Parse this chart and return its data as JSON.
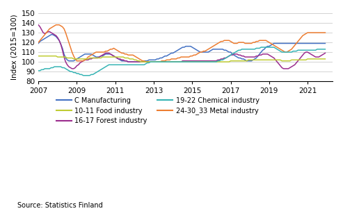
{
  "ylabel": "Index (2015=100)",
  "source": "Source: Statistics Finland",
  "ylim": [
    80,
    150
  ],
  "yticks": [
    80,
    90,
    100,
    110,
    120,
    130,
    140,
    150
  ],
  "xticks": [
    2007,
    2009,
    2011,
    2013,
    2015,
    2017,
    2019,
    2021
  ],
  "xlim": [
    2007.0,
    2022.3
  ],
  "background_color": "#ffffff",
  "grid_color": "#cccccc",
  "series": {
    "C Manufacturing": {
      "color": "#4472c4",
      "data": [
        119,
        121,
        122,
        123,
        124,
        125,
        126,
        127,
        128,
        128,
        127,
        126,
        124,
        122,
        118,
        114,
        108,
        104,
        102,
        101,
        101,
        101,
        101,
        102,
        103,
        104,
        105,
        106,
        107,
        108,
        108,
        108,
        108,
        108,
        107,
        106,
        105,
        105,
        105,
        106,
        106,
        107,
        108,
        108,
        108,
        108,
        107,
        106,
        105,
        104,
        103,
        102,
        101,
        101,
        101,
        101,
        100,
        100,
        100,
        100,
        100,
        100,
        100,
        100,
        100,
        100,
        101,
        101,
        101,
        102,
        102,
        102,
        102,
        102,
        103,
        103,
        104,
        104,
        105,
        106,
        106,
        107,
        108,
        109,
        109,
        110,
        111,
        112,
        113,
        114,
        115,
        115,
        116,
        116,
        116,
        116,
        115,
        114,
        113,
        112,
        111,
        110,
        110,
        110,
        110,
        110,
        110,
        111,
        112,
        113,
        113,
        113,
        113,
        113,
        113,
        113,
        112,
        112,
        111,
        110,
        110,
        108,
        107,
        106,
        105,
        104,
        104,
        103,
        103,
        102,
        101,
        101,
        101,
        101,
        102,
        103,
        104,
        106,
        108,
        110,
        112,
        113,
        115,
        116,
        116,
        117,
        118,
        119,
        119,
        119,
        119,
        119,
        119,
        119,
        119,
        119,
        119,
        119,
        119,
        119,
        119,
        119,
        119,
        119,
        119,
        119,
        119,
        119,
        119,
        119,
        119,
        119,
        119,
        119,
        119,
        119,
        119,
        119,
        119,
        119
      ]
    },
    "16-17 Forest industry": {
      "color": "#9b2d8e",
      "data": [
        138,
        136,
        133,
        130,
        129,
        130,
        131,
        131,
        130,
        129,
        128,
        127,
        125,
        122,
        118,
        112,
        105,
        100,
        97,
        95,
        94,
        93,
        93,
        94,
        96,
        97,
        99,
        100,
        101,
        102,
        102,
        102,
        103,
        103,
        104,
        104,
        104,
        104,
        105,
        106,
        107,
        108,
        109,
        109,
        109,
        108,
        107,
        106,
        105,
        104,
        103,
        103,
        102,
        102,
        101,
        101,
        100,
        100,
        100,
        100,
        100,
        100,
        100,
        100,
        100,
        100,
        100,
        100,
        100,
        100,
        100,
        100,
        100,
        100,
        100,
        100,
        100,
        100,
        100,
        100,
        100,
        100,
        100,
        100,
        100,
        100,
        100,
        100,
        100,
        100,
        101,
        101,
        101,
        101,
        101,
        101,
        101,
        101,
        101,
        101,
        101,
        101,
        101,
        101,
        101,
        101,
        101,
        101,
        101,
        101,
        101,
        101,
        102,
        102,
        103,
        103,
        104,
        104,
        105,
        106,
        107,
        107,
        108,
        108,
        108,
        107,
        107,
        106,
        106,
        105,
        105,
        105,
        105,
        105,
        105,
        105,
        106,
        106,
        107,
        107,
        108,
        108,
        108,
        108,
        107,
        106,
        105,
        104,
        102,
        100,
        98,
        96,
        94,
        93,
        93,
        93,
        93,
        94,
        95,
        96,
        97,
        99,
        101,
        103,
        105,
        107,
        109,
        110,
        110,
        109,
        108,
        107,
        106,
        105,
        105,
        105,
        106,
        107,
        108,
        109
      ]
    },
    "24-30_33 Metal industry": {
      "color": "#ed7d31",
      "data": [
        120,
        122,
        124,
        126,
        128,
        130,
        132,
        134,
        135,
        136,
        137,
        138,
        138,
        138,
        137,
        136,
        134,
        130,
        125,
        120,
        115,
        110,
        106,
        103,
        101,
        101,
        101,
        101,
        101,
        102,
        103,
        105,
        106,
        107,
        108,
        109,
        110,
        110,
        110,
        110,
        110,
        110,
        111,
        111,
        112,
        113,
        113,
        114,
        113,
        112,
        111,
        110,
        109,
        109,
        108,
        108,
        107,
        107,
        107,
        107,
        106,
        105,
        104,
        103,
        102,
        101,
        101,
        100,
        100,
        100,
        100,
        100,
        100,
        100,
        100,
        100,
        100,
        101,
        101,
        101,
        102,
        102,
        102,
        103,
        103,
        103,
        103,
        104,
        104,
        105,
        105,
        105,
        105,
        105,
        105,
        106,
        106,
        107,
        107,
        108,
        109,
        110,
        110,
        111,
        111,
        112,
        113,
        114,
        115,
        116,
        117,
        118,
        119,
        120,
        121,
        121,
        122,
        122,
        122,
        122,
        121,
        120,
        119,
        119,
        119,
        120,
        120,
        120,
        120,
        119,
        119,
        119,
        119,
        119,
        120,
        120,
        121,
        121,
        122,
        122,
        122,
        122,
        122,
        121,
        120,
        119,
        118,
        117,
        116,
        115,
        114,
        113,
        112,
        111,
        110,
        110,
        111,
        112,
        113,
        115,
        117,
        119,
        121,
        123,
        125,
        127,
        128,
        129,
        130,
        130,
        130,
        130,
        130,
        130,
        130,
        130,
        130,
        130,
        130,
        130
      ]
    },
    "10-11 Food industry": {
      "color": "#bfcc33",
      "data": [
        106,
        106,
        106,
        106,
        106,
        106,
        106,
        106,
        106,
        106,
        106,
        106,
        105,
        105,
        105,
        105,
        105,
        105,
        104,
        104,
        104,
        104,
        103,
        103,
        103,
        103,
        103,
        103,
        103,
        103,
        103,
        103,
        104,
        104,
        104,
        104,
        104,
        104,
        104,
        104,
        105,
        105,
        105,
        105,
        105,
        105,
        105,
        105,
        105,
        105,
        105,
        105,
        105,
        105,
        104,
        104,
        104,
        103,
        103,
        103,
        102,
        102,
        101,
        101,
        100,
        100,
        100,
        100,
        100,
        100,
        100,
        100,
        100,
        100,
        100,
        100,
        100,
        100,
        100,
        100,
        100,
        100,
        100,
        100,
        100,
        100,
        100,
        100,
        100,
        100,
        100,
        100,
        100,
        100,
        100,
        100,
        100,
        100,
        100,
        100,
        100,
        100,
        100,
        100,
        100,
        100,
        100,
        100,
        100,
        100,
        100,
        100,
        100,
        100,
        100,
        100,
        100,
        100,
        100,
        100,
        101,
        101,
        101,
        101,
        101,
        101,
        101,
        101,
        101,
        101,
        101,
        102,
        102,
        102,
        102,
        102,
        102,
        102,
        102,
        102,
        102,
        102,
        102,
        102,
        102,
        102,
        102,
        102,
        102,
        102,
        102,
        102,
        101,
        101,
        101,
        101,
        101,
        101,
        102,
        102,
        102,
        102,
        102,
        102,
        102,
        102,
        102,
        102,
        103,
        103,
        103,
        103,
        103,
        103,
        103,
        103,
        103,
        103,
        103,
        103
      ]
    },
    "19-22 Chemical industry": {
      "color": "#36b4b4",
      "data": [
        91,
        91,
        92,
        92,
        93,
        93,
        93,
        93,
        94,
        94,
        95,
        95,
        95,
        95,
        95,
        94,
        94,
        93,
        92,
        91,
        90,
        90,
        89,
        89,
        88,
        88,
        87,
        87,
        86,
        86,
        86,
        86,
        86,
        87,
        87,
        88,
        89,
        90,
        91,
        92,
        93,
        94,
        95,
        96,
        97,
        97,
        97,
        97,
        97,
        97,
        97,
        97,
        97,
        97,
        97,
        97,
        97,
        97,
        97,
        97,
        97,
        97,
        97,
        97,
        97,
        97,
        97,
        98,
        99,
        99,
        100,
        100,
        100,
        100,
        100,
        100,
        100,
        100,
        100,
        100,
        100,
        100,
        100,
        100,
        100,
        100,
        100,
        100,
        100,
        100,
        100,
        100,
        100,
        100,
        100,
        100,
        100,
        100,
        100,
        100,
        100,
        100,
        100,
        100,
        100,
        100,
        100,
        100,
        100,
        100,
        100,
        100,
        101,
        101,
        102,
        102,
        103,
        104,
        105,
        106,
        107,
        108,
        109,
        110,
        111,
        112,
        112,
        113,
        113,
        113,
        113,
        113,
        113,
        113,
        113,
        113,
        114,
        114,
        114,
        115,
        115,
        115,
        115,
        115,
        115,
        115,
        115,
        115,
        114,
        113,
        112,
        111,
        110,
        110,
        110,
        110,
        110,
        110,
        110,
        111,
        111,
        111,
        112,
        112,
        112,
        112,
        112,
        112,
        112,
        112,
        112,
        112,
        112,
        112,
        113,
        113,
        113,
        113,
        113,
        113
      ]
    }
  },
  "legend_order": [
    {
      "label": "C Manufacturing",
      "color": "#4472c4"
    },
    {
      "label": "10-11 Food industry",
      "color": "#bfcc33"
    },
    {
      "label": "16-17 Forest industry",
      "color": "#9b2d8e"
    },
    {
      "label": "19-22 Chemical industry",
      "color": "#36b4b4"
    },
    {
      "label": "24-30_33 Metal industry",
      "color": "#ed7d31"
    }
  ]
}
